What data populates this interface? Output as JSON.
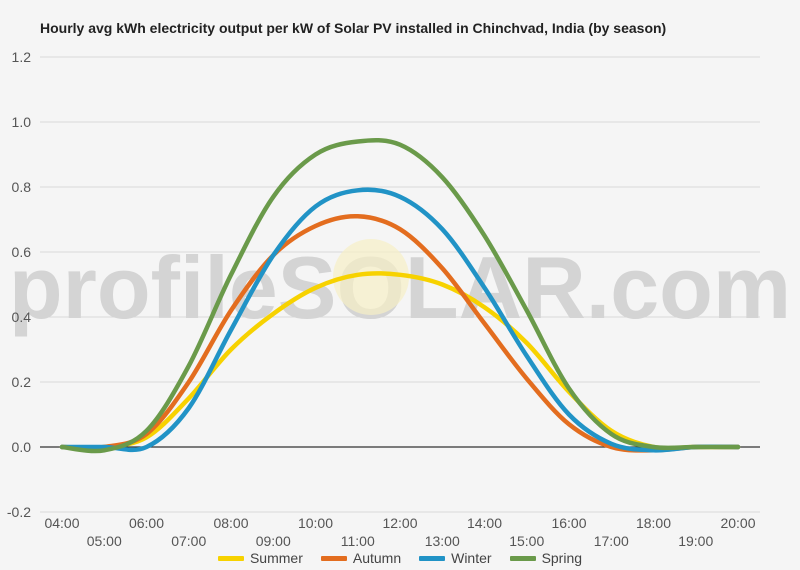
{
  "chart_data": {
    "type": "line",
    "title": "Hourly avg kWh electricity output per kW of Solar PV installed in Chinchvad, India (by season)",
    "xlabel": "",
    "ylabel": "",
    "ylim": [
      -0.2,
      1.2
    ],
    "yticks": [
      "-0.2",
      "0.0",
      "0.2",
      "0.4",
      "0.6",
      "0.8",
      "1.0",
      "1.2"
    ],
    "xlim": [
      4,
      20
    ],
    "x_tick_labels": [
      "04:00",
      "05:00",
      "06:00",
      "07:00",
      "08:00",
      "09:00",
      "10:00",
      "11:00",
      "12:00",
      "13:00",
      "14:00",
      "15:00",
      "16:00",
      "17:00",
      "18:00",
      "19:00",
      "20:00"
    ],
    "grid": true,
    "legend_position": "bottom",
    "watermark": "profileSOLAR.com",
    "x": [
      4,
      5,
      6,
      7,
      8,
      9,
      10,
      11,
      12,
      13,
      14,
      15,
      16,
      17,
      18,
      19,
      20
    ],
    "series": [
      {
        "name": "Summer",
        "color": "#f7d200",
        "values": [
          0.0,
          0.0,
          0.03,
          0.15,
          0.3,
          0.41,
          0.49,
          0.53,
          0.53,
          0.5,
          0.43,
          0.32,
          0.17,
          0.05,
          0.0,
          0.0,
          0.0
        ]
      },
      {
        "name": "Autumn",
        "color": "#e36d1f",
        "values": [
          0.0,
          0.0,
          0.04,
          0.2,
          0.42,
          0.59,
          0.68,
          0.71,
          0.67,
          0.55,
          0.38,
          0.21,
          0.07,
          0.0,
          -0.01,
          0.0,
          0.0
        ]
      },
      {
        "name": "Winter",
        "color": "#2193c6",
        "values": [
          0.0,
          0.0,
          0.0,
          0.12,
          0.36,
          0.59,
          0.74,
          0.79,
          0.77,
          0.67,
          0.49,
          0.28,
          0.1,
          0.01,
          -0.01,
          0.0,
          0.0
        ]
      },
      {
        "name": "Spring",
        "color": "#6a9a4a",
        "values": [
          0.0,
          -0.01,
          0.05,
          0.25,
          0.53,
          0.77,
          0.9,
          0.94,
          0.93,
          0.83,
          0.65,
          0.42,
          0.18,
          0.04,
          0.0,
          0.0,
          0.0
        ]
      }
    ]
  }
}
